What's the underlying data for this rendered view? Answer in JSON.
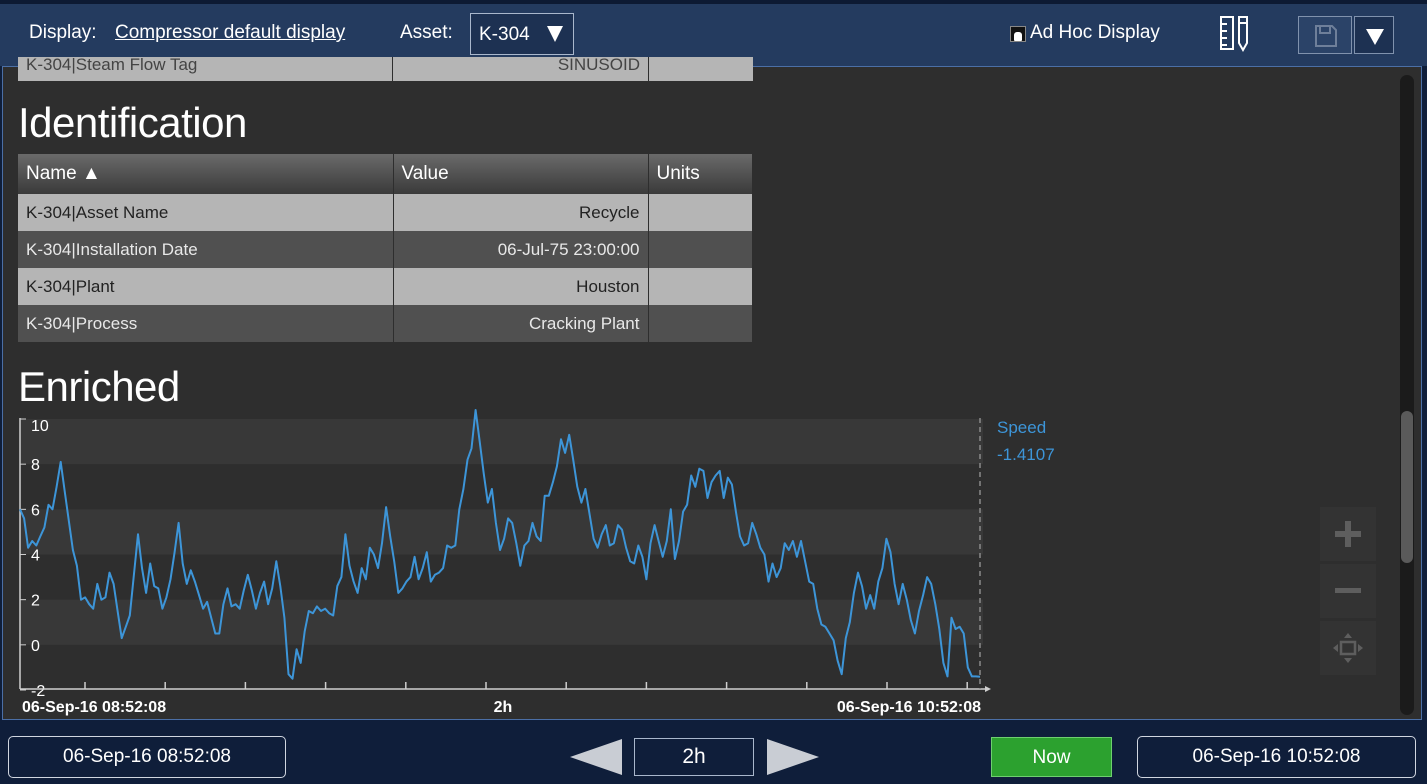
{
  "header": {
    "display_label": "Display:",
    "display_name": "Compressor default display",
    "asset_label": "Asset:",
    "asset_value": "K-304",
    "adhoc_label": "Ad Hoc Display"
  },
  "partial_row": {
    "name": "K-304|Steam Flow Tag",
    "value": "SINUSOID"
  },
  "identification": {
    "title": "Identification",
    "columns": [
      "Name ▲",
      "Value",
      "Units"
    ],
    "rows": [
      {
        "name": "K-304|Asset Name",
        "value": "Recycle",
        "units": ""
      },
      {
        "name": "K-304|Installation Date",
        "value": "06-Jul-75 23:00:00",
        "units": ""
      },
      {
        "name": "K-304|Plant",
        "value": "Houston",
        "units": ""
      },
      {
        "name": "K-304|Process",
        "value": "Cracking Plant",
        "units": ""
      }
    ]
  },
  "enriched": {
    "title": "Enriched",
    "legend_name": "Speed",
    "legend_value": "-1.4107",
    "start_label": "06-Sep-16 08:52:08",
    "mid_label": "2h",
    "end_label": "06-Sep-16 10:52:08"
  },
  "chart_data": {
    "type": "line",
    "ylim": [
      -2,
      10
    ],
    "yticks": [
      "10",
      "8",
      "6",
      "4",
      "2",
      "0",
      "-2"
    ],
    "ytick_values": [
      10,
      8,
      6,
      4,
      2,
      0,
      -2
    ],
    "x_start": "06-Sep-16 08:52:08",
    "x_end": "06-Sep-16 10:52:08",
    "x_center_label": "2h",
    "grid_bands": true,
    "legend_position": "right",
    "series": [
      {
        "name": "Speed",
        "color": "#3d95d8",
        "last_value": -1.4107,
        "values": [
          6.0,
          5.6,
          4.3,
          4.6,
          4.4,
          4.8,
          5.2,
          6.2,
          6.0,
          7.0,
          8.1,
          6.8,
          5.5,
          4.2,
          3.5,
          2.0,
          2.1,
          1.8,
          1.6,
          2.7,
          2.0,
          2.1,
          3.2,
          2.7,
          1.5,
          0.3,
          0.8,
          1.3,
          3.1,
          4.9,
          3.4,
          2.3,
          3.6,
          2.6,
          2.5,
          1.6,
          2.1,
          2.9,
          4.1,
          5.4,
          3.6,
          2.7,
          3.3,
          2.8,
          2.2,
          1.6,
          1.9,
          1.2,
          0.5,
          0.5,
          1.8,
          2.5,
          1.7,
          1.8,
          1.6,
          2.4,
          3.1,
          2.4,
          1.6,
          2.3,
          2.8,
          1.8,
          2.5,
          3.7,
          2.6,
          1.2,
          -1.3,
          -1.5,
          -0.2,
          -0.8,
          0.6,
          1.5,
          1.4,
          1.7,
          1.5,
          1.6,
          1.4,
          1.3,
          2.6,
          3.0,
          4.9,
          3.5,
          2.8,
          2.3,
          3.4,
          2.9,
          4.3,
          4.0,
          3.4,
          4.5,
          6.1,
          4.8,
          3.7,
          2.3,
          2.5,
          2.8,
          3.0,
          3.9,
          2.9,
          3.4,
          4.1,
          2.8,
          3.1,
          3.2,
          3.4,
          4.4,
          4.3,
          4.4,
          6.0,
          6.9,
          8.2,
          8.7,
          10.4,
          9.0,
          7.6,
          6.3,
          6.9,
          5.4,
          4.2,
          4.7,
          5.6,
          5.4,
          4.5,
          3.5,
          4.4,
          4.6,
          5.4,
          4.8,
          4.6,
          6.6,
          6.6,
          7.2,
          7.9,
          9.1,
          8.5,
          9.3,
          8.2,
          7.0,
          6.3,
          6.9,
          5.8,
          4.7,
          4.3,
          4.9,
          5.3,
          4.4,
          4.5,
          5.3,
          5.1,
          4.3,
          3.7,
          3.6,
          4.4,
          3.9,
          2.9,
          4.5,
          5.3,
          4.6,
          3.9,
          4.6,
          6.0,
          3.8,
          4.6,
          5.9,
          6.2,
          7.5,
          7.0,
          7.8,
          7.7,
          6.5,
          7.2,
          7.5,
          7.7,
          6.5,
          7.4,
          7.1,
          5.9,
          4.8,
          4.4,
          4.5,
          5.4,
          4.9,
          4.3,
          4.0,
          2.8,
          3.6,
          3.0,
          3.4,
          4.5,
          4.2,
          4.6,
          3.9,
          4.6,
          3.7,
          2.8,
          2.7,
          1.6,
          0.9,
          0.8,
          0.5,
          0.2,
          -0.7,
          -1.3,
          0.3,
          1.0,
          2.3,
          3.2,
          2.6,
          1.6,
          2.2,
          1.6,
          2.8,
          3.4,
          4.7,
          4.1,
          2.7,
          1.8,
          2.7,
          2.0,
          1.1,
          0.5,
          1.5,
          2.2,
          3.0,
          2.7,
          1.8,
          0.7,
          -0.8,
          -1.4,
          1.2,
          0.7,
          0.8,
          0.5,
          -1.0,
          -1.4,
          -1.4,
          -1.4107
        ]
      }
    ]
  },
  "footer": {
    "start_time": "06-Sep-16 08:52:08",
    "duration": "2h",
    "now_label": "Now",
    "end_time": "06-Sep-16 10:52:08"
  }
}
